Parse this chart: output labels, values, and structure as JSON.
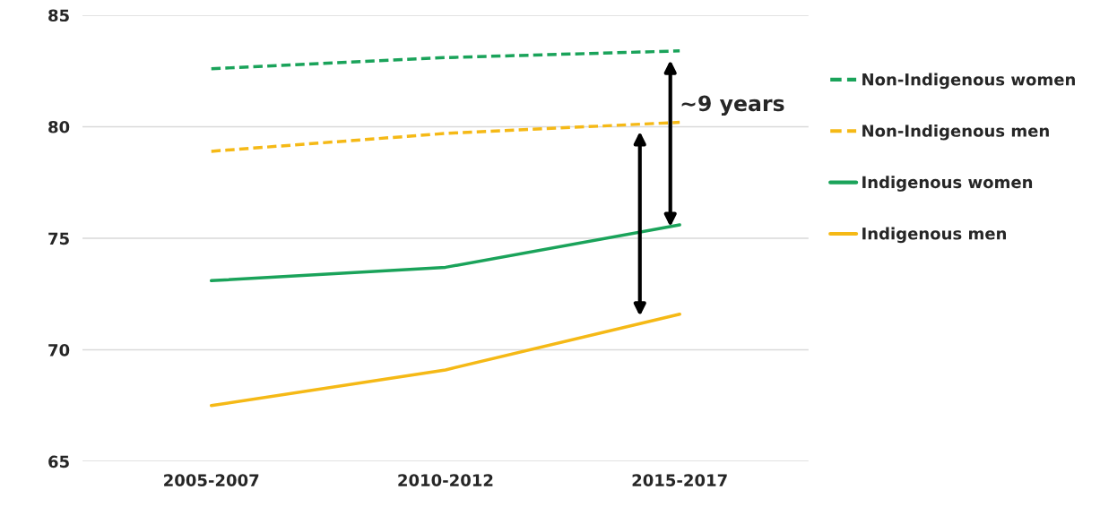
{
  "chart_data": {
    "type": "line",
    "categories": [
      "2005-2007",
      "2010-2012",
      "2015-2017"
    ],
    "series": [
      {
        "name": "Non-Indigenous women",
        "color": "#1aa35a",
        "line_style": "dashed",
        "values": [
          82.6,
          83.1,
          83.4
        ]
      },
      {
        "name": "Non-Indigenous men",
        "color": "#f5b916",
        "line_style": "dashed",
        "values": [
          78.9,
          79.7,
          80.2
        ]
      },
      {
        "name": "Indigenous women",
        "color": "#1aa35a",
        "line_style": "solid",
        "values": [
          73.1,
          73.7,
          75.6
        ]
      },
      {
        "name": "Indigenous men",
        "color": "#f5b916",
        "line_style": "solid",
        "values": [
          67.5,
          69.1,
          71.6
        ]
      }
    ],
    "ylim": [
      65,
      85
    ],
    "yticks": [
      65,
      70,
      75,
      80,
      85
    ],
    "grid": "y",
    "legend": "right",
    "marker": "none",
    "annotations": [
      "~9 years"
    ]
  }
}
